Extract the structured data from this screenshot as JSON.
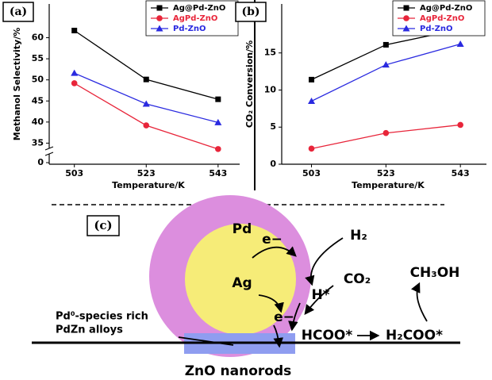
{
  "chart_data": [
    {
      "type": "line",
      "panel_label": "(a)",
      "y_label": "Methanol Selectivity/%",
      "x_label": "Temperature/K",
      "x": [
        503,
        523,
        543
      ],
      "xlim": [
        496,
        549
      ],
      "xticks": [
        503,
        523,
        543
      ],
      "ylim": [
        30,
        68
      ],
      "yticks": [
        35,
        40,
        45,
        50,
        55,
        60
      ],
      "break_tick": 0,
      "legend": "upper right",
      "series": [
        {
          "name": "Ag@Pd-ZnO",
          "color": "#000000",
          "marker": "square",
          "values": [
            61.7,
            50.1,
            45.4
          ]
        },
        {
          "name": "AgPd-ZnO",
          "color": "#e8253a",
          "marker": "circle",
          "values": [
            49.2,
            39.2,
            33.6
          ]
        },
        {
          "name": "Pd-ZnO",
          "color": "#2a2ae0",
          "marker": "triangle",
          "values": [
            51.6,
            44.3,
            39.9
          ]
        }
      ]
    },
    {
      "type": "line",
      "panel_label": "(b)",
      "y_label": "CO₂ Conversion/%",
      "x_label": "Temperature/K",
      "x": [
        503,
        523,
        543
      ],
      "xlim": [
        495,
        550
      ],
      "xticks": [
        503,
        523,
        543
      ],
      "ylim": [
        0,
        21.6
      ],
      "yticks": [
        0,
        5,
        10,
        15
      ],
      "legend": "upper right",
      "series": [
        {
          "name": "Ag@Pd-ZnO",
          "color": "#000000",
          "marker": "square",
          "values": [
            11.4,
            16.1,
            18.2
          ]
        },
        {
          "name": "AgPd-ZnO",
          "color": "#e8253a",
          "marker": "circle",
          "values": [
            2.1,
            4.2,
            5.3
          ]
        },
        {
          "name": "Pd-ZnO",
          "color": "#2a2ae0",
          "marker": "triangle",
          "values": [
            8.5,
            13.4,
            16.2
          ]
        }
      ]
    }
  ],
  "diagram": {
    "panel_label": "(c)",
    "pd": "Pd",
    "ag": "Ag",
    "e1": "e−",
    "e2": "e−",
    "h2": "H₂",
    "co2": "CO₂",
    "h_star": "H*",
    "ch3oh": "CH₃OH",
    "hcoo": "HCOO*",
    "h2coo": "H₂COO*",
    "species_line1": "Pd⁰-species rich",
    "species_line2": "PdZn alloys",
    "support": "ZnO nanorods"
  }
}
